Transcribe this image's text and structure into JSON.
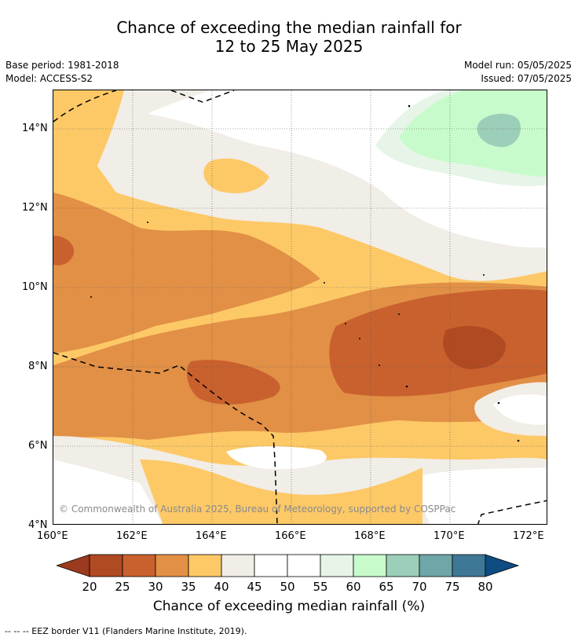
{
  "title_line1": "Chance of exceeding the median rainfall for",
  "title_line2": "12 to 25 May 2025",
  "base_period": "Base period: 1981-2018",
  "model": "Model: ACCESS-S2",
  "model_run": "Model run: 05/05/2025",
  "issued": "Issued: 07/05/2025",
  "copyright": "© Commonwealth of Australia 2025, Bureau of Meteorology, supported by COSPPac",
  "lon_ticks": [
    "160°E",
    "162°E",
    "164°E",
    "166°E",
    "168°E",
    "170°E",
    "172°E"
  ],
  "lat_ticks": [
    "14°N",
    "12°N",
    "10°N",
    "8°N",
    "6°N",
    "4°N"
  ],
  "colorbar": {
    "title": "Chance of exceeding median rainfall (%)",
    "ticks": [
      "20",
      "25",
      "30",
      "35",
      "40",
      "45",
      "50",
      "55",
      "60",
      "65",
      "70",
      "75",
      "80"
    ],
    "colors": [
      "#9b3a1e",
      "#b04a22",
      "#c9612f",
      "#e29046",
      "#fdc967",
      "#f1ede7",
      "#ffffff",
      "#ffffff",
      "#e6f5e8",
      "#c8fbcb",
      "#9ccfb9",
      "#6fa6a8",
      "#3f7896",
      "#0f4c81"
    ]
  },
  "footnote": "-- -- -- EEZ border V11 (Flanders Marine Institute, 2019)."
}
